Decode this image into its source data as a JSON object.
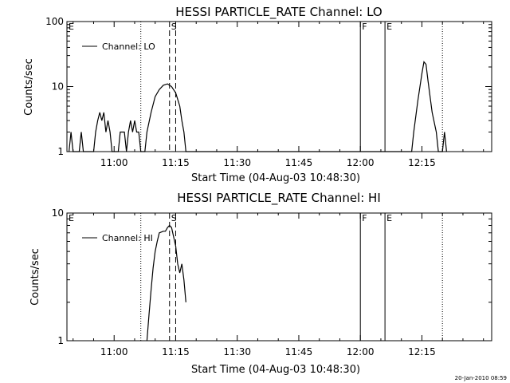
{
  "footer": {
    "date": "20-Jan-2010 08:59"
  },
  "chart_data": [
    {
      "type": "line",
      "title": "HESSI PARTICLE_RATE Channel: LO",
      "xlabel": "Start Time (04-Aug-03 10:48:30)",
      "ylabel": "Counts/sec",
      "yscale": "log",
      "xlim": [
        "10:48:30",
        "12:32:00"
      ],
      "ylim": [
        1,
        100
      ],
      "x_ticks": [
        "11:00",
        "11:15",
        "11:30",
        "11:45",
        "12:00",
        "12:15"
      ],
      "y_ticks": [
        "1",
        "10",
        "100"
      ],
      "legend": {
        "placement": "top-left",
        "entries": [
          "Channel: LO"
        ]
      },
      "series": [
        {
          "name": "Channel: LO",
          "points": [
            [
              "10:49:00",
              1
            ],
            [
              "10:49:30",
              2
            ],
            [
              "10:50:00",
              1
            ],
            [
              "10:51:30",
              1
            ],
            [
              "10:52:00",
              2
            ],
            [
              "10:52:30",
              1
            ],
            [
              "10:55:00",
              1
            ],
            [
              "10:55:30",
              2
            ],
            [
              "10:56:00",
              3
            ],
            [
              "10:56:30",
              4
            ],
            [
              "10:57:00",
              3
            ],
            [
              "10:57:30",
              4
            ],
            [
              "10:58:00",
              2
            ],
            [
              "10:58:30",
              3
            ],
            [
              "10:59:00",
              2
            ],
            [
              "10:59:30",
              1
            ],
            [
              "11:01:00",
              1
            ],
            [
              "11:01:30",
              2
            ],
            [
              "11:02:30",
              2
            ],
            [
              "11:03:00",
              1
            ],
            [
              "11:03:30",
              2
            ],
            [
              "11:04:00",
              3
            ],
            [
              "11:04:30",
              2
            ],
            [
              "11:05:00",
              3
            ],
            [
              "11:05:30",
              2
            ],
            [
              "11:06:00",
              2
            ],
            [
              "11:06:30",
              1
            ],
            [
              "11:07:30",
              1
            ],
            [
              "11:08:00",
              2
            ],
            [
              "11:09:00",
              4
            ],
            [
              "11:10:00",
              7
            ],
            [
              "11:11:00",
              9
            ],
            [
              "11:12:00",
              10.5
            ],
            [
              "11:13:00",
              11
            ],
            [
              "11:14:00",
              10
            ],
            [
              "11:15:00",
              8
            ],
            [
              "11:16:00",
              5
            ],
            [
              "11:16:30",
              3
            ],
            [
              "11:17:00",
              2
            ],
            [
              "11:17:30",
              1
            ],
            [
              "12:12:30",
              1
            ],
            [
              "12:13:00",
              2
            ],
            [
              "12:14:00",
              6
            ],
            [
              "12:15:00",
              16
            ],
            [
              "12:15:30",
              24
            ],
            [
              "12:16:00",
              22
            ],
            [
              "12:16:30",
              12
            ],
            [
              "12:17:30",
              4
            ],
            [
              "12:18:30",
              2
            ],
            [
              "12:19:00",
              1
            ],
            [
              "12:20:00",
              1
            ],
            [
              "12:20:30",
              2
            ],
            [
              "12:21:00",
              1
            ]
          ]
        }
      ],
      "markers": [
        {
          "label": "E",
          "time": "10:48:30",
          "style": "dotted"
        },
        {
          "label": "",
          "time": "11:06:30",
          "style": "dotted"
        },
        {
          "label": "S",
          "time": "11:13:30",
          "style": "dashed"
        },
        {
          "label": "",
          "time": "11:15:00",
          "style": "dashed"
        },
        {
          "label": "F",
          "time": "12:00:00",
          "style": "solid"
        },
        {
          "label": "E",
          "time": "12:06:00",
          "style": "solid"
        },
        {
          "label": "",
          "time": "12:20:00",
          "style": "dotted"
        }
      ]
    },
    {
      "type": "line",
      "title": "HESSI PARTICLE_RATE Channel: HI",
      "xlabel": "Start Time (04-Aug-03 10:48:30)",
      "ylabel": "Counts/sec",
      "yscale": "log",
      "xlim": [
        "10:48:30",
        "12:32:00"
      ],
      "ylim": [
        1,
        10
      ],
      "x_ticks": [
        "11:00",
        "11:15",
        "11:30",
        "11:45",
        "12:00",
        "12:15"
      ],
      "y_ticks": [
        "1",
        "10"
      ],
      "legend": {
        "placement": "top-left",
        "entries": [
          "Channel: HI"
        ]
      },
      "series": [
        {
          "name": "Channel: HI",
          "points": [
            [
              "11:08:00",
              1
            ],
            [
              "11:08:30",
              1.6
            ],
            [
              "11:09:00",
              2.5
            ],
            [
              "11:09:30",
              3.7
            ],
            [
              "11:10:00",
              5
            ],
            [
              "11:10:30",
              6
            ],
            [
              "11:11:00",
              7
            ],
            [
              "11:12:00",
              7.2
            ],
            [
              "11:12:30",
              7.2
            ],
            [
              "11:13:00",
              7.7
            ],
            [
              "11:13:30",
              8
            ],
            [
              "11:14:00",
              7.7
            ],
            [
              "11:14:30",
              6.5
            ],
            [
              "11:15:00",
              5.5
            ],
            [
              "11:15:30",
              4
            ],
            [
              "11:16:00",
              3.4
            ],
            [
              "11:16:30",
              4
            ],
            [
              "11:17:00",
              3
            ],
            [
              "11:17:30",
              2
            ]
          ]
        }
      ],
      "markers": [
        {
          "label": "E",
          "time": "10:48:30",
          "style": "dotted"
        },
        {
          "label": "",
          "time": "11:06:30",
          "style": "dotted"
        },
        {
          "label": "S",
          "time": "11:13:30",
          "style": "dashed"
        },
        {
          "label": "",
          "time": "11:15:00",
          "style": "dashed"
        },
        {
          "label": "F",
          "time": "12:00:00",
          "style": "solid"
        },
        {
          "label": "E",
          "time": "12:06:00",
          "style": "solid"
        },
        {
          "label": "",
          "time": "12:20:00",
          "style": "dotted"
        }
      ]
    }
  ]
}
